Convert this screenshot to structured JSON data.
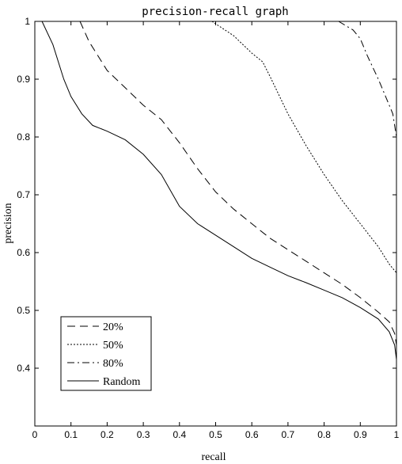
{
  "chart_data": {
    "type": "line",
    "title": "precision-recall graph",
    "xlabel": "recall",
    "ylabel": "precision",
    "xlim": [
      0,
      1
    ],
    "ylim": [
      0.3,
      1
    ],
    "xticks": [
      "0",
      "0.1",
      "0.2",
      "0.3",
      "0.4",
      "0.5",
      "0.6",
      "0.7",
      "0.8",
      "0.9",
      "1"
    ],
    "yticks": [
      "0.4",
      "0.5",
      "0.6",
      "0.7",
      "0.8",
      "0.9",
      "1"
    ],
    "grid": false,
    "legend_position": "bottom-left",
    "series": [
      {
        "name": "20%",
        "style": "dashed",
        "x": [
          0.125,
          0.15,
          0.2,
          0.25,
          0.3,
          0.35,
          0.4,
          0.45,
          0.5,
          0.55,
          0.6,
          0.65,
          0.7,
          0.75,
          0.8,
          0.85,
          0.9,
          0.95,
          0.98,
          0.995,
          1.0
        ],
        "y": [
          1.0,
          0.965,
          0.915,
          0.885,
          0.855,
          0.83,
          0.79,
          0.745,
          0.705,
          0.675,
          0.65,
          0.625,
          0.605,
          0.585,
          0.565,
          0.545,
          0.522,
          0.497,
          0.48,
          0.46,
          0.44
        ]
      },
      {
        "name": "50%",
        "style": "dotted",
        "x": [
          0.49,
          0.55,
          0.6,
          0.63,
          0.65,
          0.7,
          0.75,
          0.8,
          0.85,
          0.9,
          0.95,
          0.98,
          1.0
        ],
        "y": [
          1.0,
          0.975,
          0.945,
          0.93,
          0.905,
          0.84,
          0.785,
          0.735,
          0.69,
          0.65,
          0.61,
          0.58,
          0.565
        ]
      },
      {
        "name": "80%",
        "style": "dashdot",
        "x": [
          0.84,
          0.88,
          0.9,
          0.92,
          0.95,
          0.97,
          0.99,
          1.0
        ],
        "y": [
          1.0,
          0.985,
          0.97,
          0.94,
          0.9,
          0.87,
          0.84,
          0.8
        ]
      },
      {
        "name": "Random",
        "style": "solid",
        "x": [
          0.02,
          0.05,
          0.08,
          0.1,
          0.13,
          0.16,
          0.2,
          0.25,
          0.3,
          0.35,
          0.4,
          0.45,
          0.5,
          0.55,
          0.6,
          0.65,
          0.7,
          0.75,
          0.8,
          0.85,
          0.9,
          0.95,
          0.98,
          0.995,
          1.0
        ],
        "y": [
          1.0,
          0.96,
          0.9,
          0.87,
          0.84,
          0.82,
          0.81,
          0.795,
          0.77,
          0.735,
          0.68,
          0.65,
          0.63,
          0.61,
          0.59,
          0.575,
          0.56,
          0.548,
          0.535,
          0.522,
          0.505,
          0.485,
          0.463,
          0.44,
          0.415
        ]
      }
    ]
  }
}
